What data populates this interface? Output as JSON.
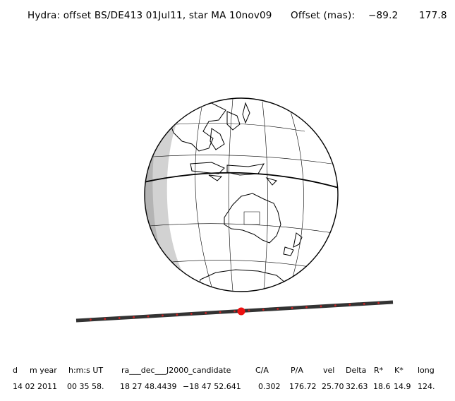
{
  "header": {
    "title": "Hydra: offset BS/DE413 01Jul11, star MA 10nov09",
    "offset_label": "Offset (mas):",
    "offset_x": "−89.2",
    "offset_y": "177.8"
  },
  "colors": {
    "path_line": "#333333",
    "path_ticks": "#cc2222",
    "star_marker": "#ee1111",
    "night_shade": "#d2d2d2",
    "twilight_shade": "#b4b4b4"
  },
  "table": {
    "headers": [
      "d",
      "m year",
      "h:m:s UT",
      "ra___dec___J2000_candidate",
      "C/A",
      "P/A",
      "vel",
      "Delta",
      "R*",
      "K*",
      "long"
    ],
    "values": [
      "14 02 2011",
      "00 35 58.",
      "18 27 48.4439",
      "−18 47  52.641",
      "0.302",
      "176.72",
      "25.70",
      "32.63",
      "18.6",
      "14.9",
      "124."
    ]
  }
}
